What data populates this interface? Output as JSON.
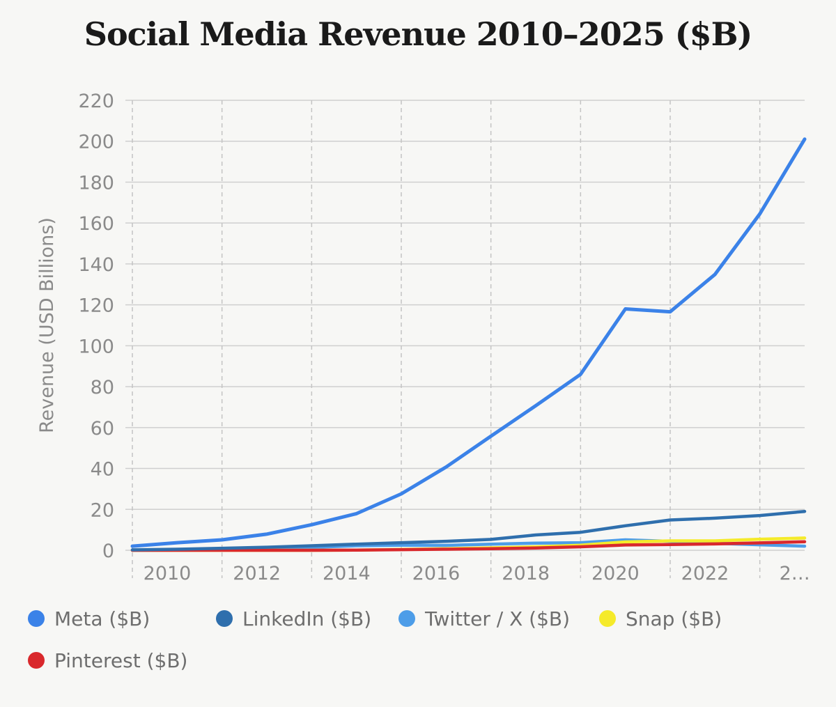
{
  "chart_data": {
    "type": "line",
    "title": "Social Media Revenue 2010–2025 ($B)",
    "xlabel": "",
    "ylabel": "Revenue (USD Billions)",
    "x": [
      2010,
      2011,
      2012,
      2013,
      2014,
      2015,
      2016,
      2017,
      2018,
      2019,
      2020,
      2021,
      2022,
      2023,
      2024,
      2025
    ],
    "x_tick_labels": [
      "2010",
      "2012",
      "2014",
      "2016",
      "2018",
      "2020",
      "2022",
      "2…"
    ],
    "ylim": [
      0,
      220
    ],
    "y_ticks": [
      0,
      20,
      40,
      60,
      80,
      100,
      120,
      140,
      160,
      180,
      200,
      220
    ],
    "grid": true,
    "legend_position": "bottom",
    "series": [
      {
        "name": "Meta ($B)",
        "color": "#3b82e8",
        "values": [
          2.0,
          3.7,
          5.1,
          7.9,
          12.5,
          17.9,
          27.6,
          40.7,
          55.8,
          70.7,
          86.0,
          118.0,
          116.6,
          134.9,
          164.5,
          201.0
        ]
      },
      {
        "name": "LinkedIn ($B)",
        "color": "#2f6fad",
        "values": [
          0.2,
          0.5,
          1.0,
          1.5,
          2.2,
          3.0,
          3.7,
          4.4,
          5.3,
          7.5,
          8.8,
          12.0,
          14.8,
          15.7,
          17.0,
          19.0
        ]
      },
      {
        "name": "Twitter / X ($B)",
        "color": "#4d9de8",
        "values": [
          0.03,
          0.1,
          0.3,
          0.7,
          1.4,
          2.2,
          2.5,
          2.4,
          3.0,
          3.5,
          3.7,
          5.1,
          4.4,
          3.4,
          2.7,
          2.0
        ]
      },
      {
        "name": "Snap ($B)",
        "color": "#f5ea2a",
        "values": [
          0.0,
          0.0,
          0.0,
          0.0,
          0.0,
          0.06,
          0.4,
          0.8,
          1.2,
          1.7,
          2.5,
          4.1,
          4.6,
          4.6,
          5.4,
          6.0
        ]
      },
      {
        "name": "Pinterest ($B)",
        "color": "#d9282c",
        "values": [
          0.0,
          0.0,
          0.0,
          0.0,
          0.0,
          0.1,
          0.3,
          0.5,
          0.8,
          1.1,
          1.7,
          2.6,
          2.8,
          3.1,
          3.6,
          4.2
        ]
      }
    ]
  }
}
